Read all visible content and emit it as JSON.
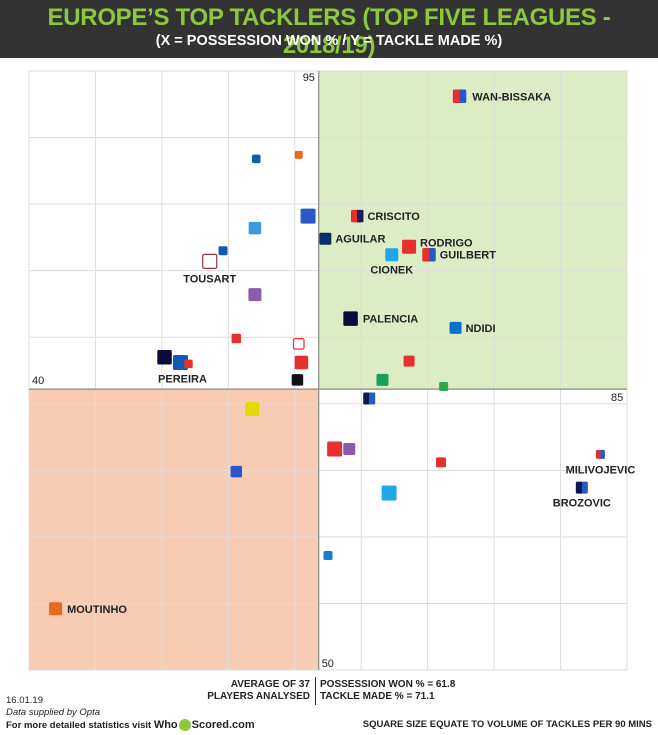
{
  "header": {
    "title": "EUROPE’S TOP TACKLERS (TOP FIVE LEAGUES - 2018/19)",
    "subtitle": "(X = POSSESSION WON % / Y = TACKLE MADE %)"
  },
  "colors": {
    "header_bg": "#333333",
    "title": "#8dc63f",
    "top_right_quadrant": "#dcecc5",
    "bottom_left_quadrant": "#f8cbb3",
    "grid": "#dddddd",
    "axis": "#888888"
  },
  "chart_data": {
    "type": "scatter",
    "title": "EUROPE’S TOP TACKLERS (TOP FIVE LEAGUES - 2018/19)",
    "xlabel": "POSSESSION WON %",
    "ylabel": "TACKLE MADE %",
    "xlim": [
      40,
      85
    ],
    "ylim": [
      50,
      95
    ],
    "axis_labels": {
      "x_min": "40",
      "x_max": "85",
      "y_max": "95",
      "y_min": "50"
    },
    "reference": {
      "x": 61.8,
      "y": 71.1
    },
    "size_meaning": "tackles per 90 mins",
    "points": [
      {
        "label": "WAN-BISSAKA",
        "x": 72.4,
        "y": 93.1,
        "size": 2.3,
        "colors": [
          "#e63030",
          "#2a58c8"
        ]
      },
      {
        "label": "CRISCITO",
        "x": 64.7,
        "y": 84.1,
        "size": 2.1,
        "colors": [
          "#e63030",
          "#1a1a5e"
        ]
      },
      {
        "label": "AGUILAR",
        "x": 62.3,
        "y": 82.4,
        "size": 2.0,
        "colors": [
          "#0d2d6b"
        ]
      },
      {
        "label": "RODRIGO",
        "x": 68.6,
        "y": 81.8,
        "size": 2.4,
        "colors": [
          "#e63030"
        ]
      },
      {
        "label": "GUILBERT",
        "x": 70.1,
        "y": 81.2,
        "size": 2.3,
        "colors": [
          "#e63030",
          "#2a58c8"
        ]
      },
      {
        "label": "CIONEK",
        "x": 67.3,
        "y": 81.2,
        "size": 2.2,
        "colors": [
          "#1ea8e8"
        ]
      },
      {
        "label": "TOUSART",
        "x": 53.6,
        "y": 80.7,
        "size": 2.4,
        "colors": [
          "#ffffff"
        ],
        "stroke": "#a03040"
      },
      {
        "label": "PALENCIA",
        "x": 64.2,
        "y": 76.4,
        "size": 2.5,
        "colors": [
          "#0b0b3e"
        ]
      },
      {
        "label": "NDIDI",
        "x": 72.1,
        "y": 75.7,
        "size": 2.0,
        "colors": [
          "#0f6fcc"
        ]
      },
      {
        "label": "PEREIRA",
        "x": 51.4,
        "y": 73.1,
        "size": 2.6,
        "colors": [
          "#0f5ab8"
        ]
      },
      {
        "label": "MILIVOJEVIC",
        "x": 83.0,
        "y": 66.2,
        "size": 1.4,
        "colors": [
          "#e63030",
          "#2a58c8"
        ]
      },
      {
        "label": "BROZOVIC",
        "x": 81.6,
        "y": 63.7,
        "size": 2.0,
        "colors": [
          "#0b1a4a",
          "#2a58c8"
        ]
      },
      {
        "label": "MOUTINHO",
        "x": 42.0,
        "y": 54.6,
        "size": 2.2,
        "colors": [
          "#e86a1e"
        ]
      },
      {
        "label": "",
        "x": 60.3,
        "y": 88.7,
        "size": 1.2,
        "colors": [
          "#e86a1e"
        ]
      },
      {
        "label": "",
        "x": 57.1,
        "y": 88.4,
        "size": 1.3,
        "colors": [
          "#0f5ab8"
        ]
      },
      {
        "label": "",
        "x": 61.0,
        "y": 84.1,
        "size": 2.6,
        "colors": [
          "#2a58c8"
        ]
      },
      {
        "label": "",
        "x": 57.0,
        "y": 83.2,
        "size": 2.1,
        "colors": [
          "#3a9ae0"
        ]
      },
      {
        "label": "",
        "x": 54.6,
        "y": 81.5,
        "size": 1.4,
        "colors": [
          "#0f5ab8"
        ]
      },
      {
        "label": "",
        "x": 57.0,
        "y": 78.2,
        "size": 2.2,
        "colors": [
          "#8a5cb0"
        ]
      },
      {
        "label": "",
        "x": 55.6,
        "y": 74.9,
        "size": 1.5,
        "colors": [
          "#e63030"
        ]
      },
      {
        "label": "",
        "x": 60.3,
        "y": 74.5,
        "size": 1.7,
        "colors": [
          "#ffffff"
        ],
        "stroke": "#e63030"
      },
      {
        "label": "",
        "x": 50.2,
        "y": 73.5,
        "size": 2.5,
        "colors": [
          "#0b0b3e"
        ]
      },
      {
        "label": "",
        "x": 52.0,
        "y": 73.0,
        "size": 1.3,
        "colors": [
          "#e63030"
        ]
      },
      {
        "label": "",
        "x": 60.5,
        "y": 73.1,
        "size": 2.3,
        "colors": [
          "#e63030"
        ]
      },
      {
        "label": "",
        "x": 68.6,
        "y": 73.2,
        "size": 1.8,
        "colors": [
          "#e63030"
        ]
      },
      {
        "label": "",
        "x": 60.2,
        "y": 71.8,
        "size": 1.9,
        "colors": [
          "#111111"
        ]
      },
      {
        "label": "",
        "x": 66.6,
        "y": 71.8,
        "size": 2.0,
        "colors": [
          "#1aa05a"
        ]
      },
      {
        "label": "",
        "x": 71.2,
        "y": 71.3,
        "size": 1.4,
        "colors": [
          "#2aa84a"
        ]
      },
      {
        "label": "",
        "x": 65.6,
        "y": 70.4,
        "size": 2.0,
        "colors": [
          "#0b1a4a",
          "#2a58c8"
        ]
      },
      {
        "label": "",
        "x": 56.8,
        "y": 69.6,
        "size": 2.4,
        "colors": [
          "#e8d800"
        ]
      },
      {
        "label": "",
        "x": 63.0,
        "y": 66.6,
        "size": 2.6,
        "colors": [
          "#e63030"
        ]
      },
      {
        "label": "",
        "x": 64.1,
        "y": 66.6,
        "size": 2.0,
        "colors": [
          "#8a5cb0"
        ]
      },
      {
        "label": "",
        "x": 71.0,
        "y": 65.6,
        "size": 1.6,
        "colors": [
          "#e63030"
        ]
      },
      {
        "label": "",
        "x": 55.6,
        "y": 64.9,
        "size": 1.9,
        "colors": [
          "#2a58c8"
        ]
      },
      {
        "label": "",
        "x": 67.1,
        "y": 63.3,
        "size": 2.6,
        "colors": [
          "#1ea8e8"
        ]
      },
      {
        "label": "",
        "x": 62.5,
        "y": 58.6,
        "size": 1.4,
        "colors": [
          "#1a7ad0"
        ]
      }
    ]
  },
  "footer": {
    "avg_line1": "AVERAGE OF 37",
    "avg_line2": "PLAYERS ANALYSED",
    "possession_text": "POSSESSION WON % = 61.8",
    "tackle_text": "TACKLE MADE % = 71.1",
    "date": "16.01.19",
    "supplied": "Data supplied by Opta",
    "more_text": "For more detailed statistics visit",
    "brand_prefix": "Who",
    "brand_suffix": "Scored",
    "brand_tld": ".com",
    "size_note": "SQUARE SIZE EQUATE TO VOLUME OF TACKLES PER 90 MINS"
  }
}
